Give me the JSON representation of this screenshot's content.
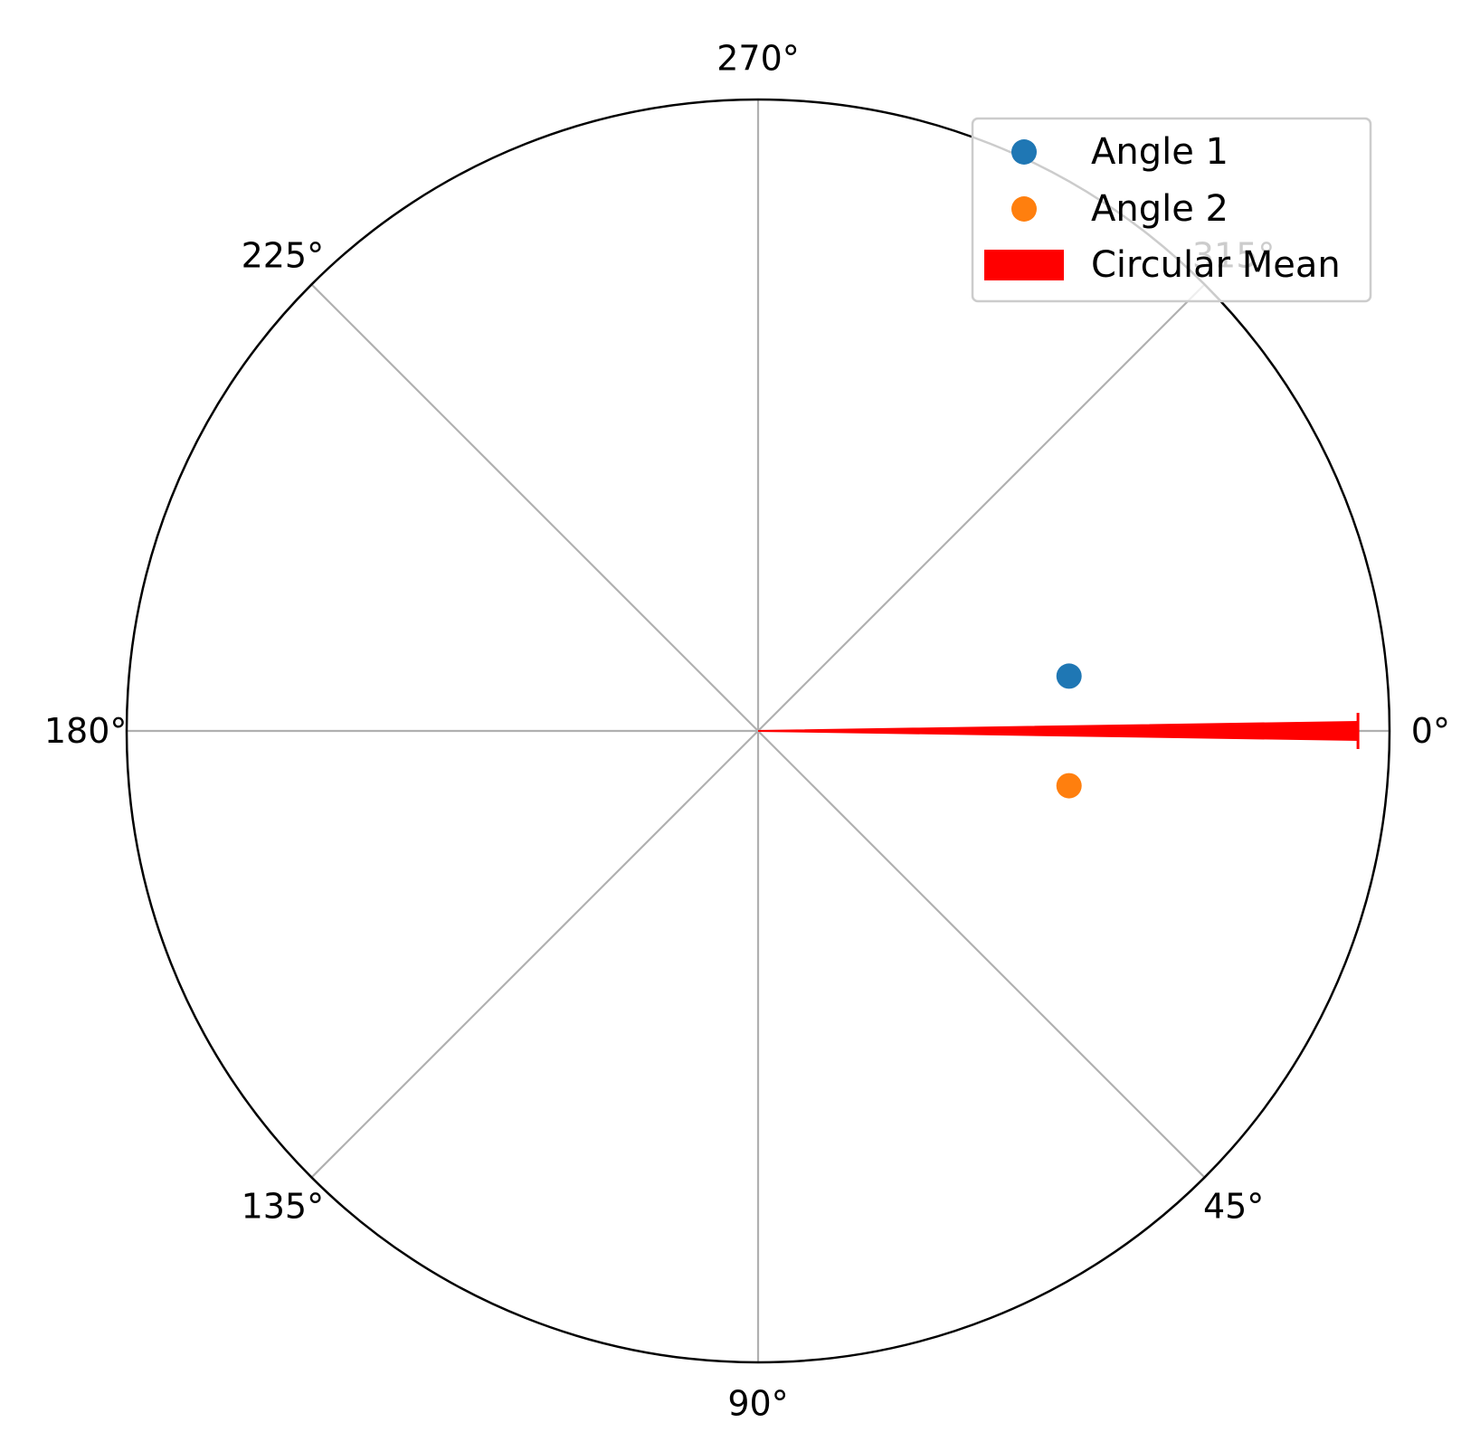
{
  "chart_data": {
    "type": "scatter",
    "projection": "polar",
    "theta_zero_location": "E",
    "theta_direction": "clockwise",
    "theta_tick_labels": [
      "0°",
      "45°",
      "90°",
      "135°",
      "180°",
      "225°",
      "270°",
      "315°"
    ],
    "theta_ticks_deg": [
      0,
      45,
      90,
      135,
      180,
      225,
      270,
      315
    ],
    "r_range": [
      0,
      1
    ],
    "r_tick_labels": [],
    "grid": true,
    "legend_placement": "upper right",
    "series": [
      {
        "name": "Angle 1",
        "kind": "scatter",
        "color": "#1f77b4",
        "theta_deg": [
          350
        ],
        "r": [
          0.5
        ]
      },
      {
        "name": "Angle 2",
        "kind": "scatter",
        "color": "#ff7f0e",
        "theta_deg": [
          10
        ],
        "r": [
          0.5
        ]
      },
      {
        "name": "Circular Mean",
        "kind": "arrow",
        "color": "#ff0000",
        "theta_deg": [
          0
        ],
        "r": [
          0.95
        ]
      }
    ]
  }
}
